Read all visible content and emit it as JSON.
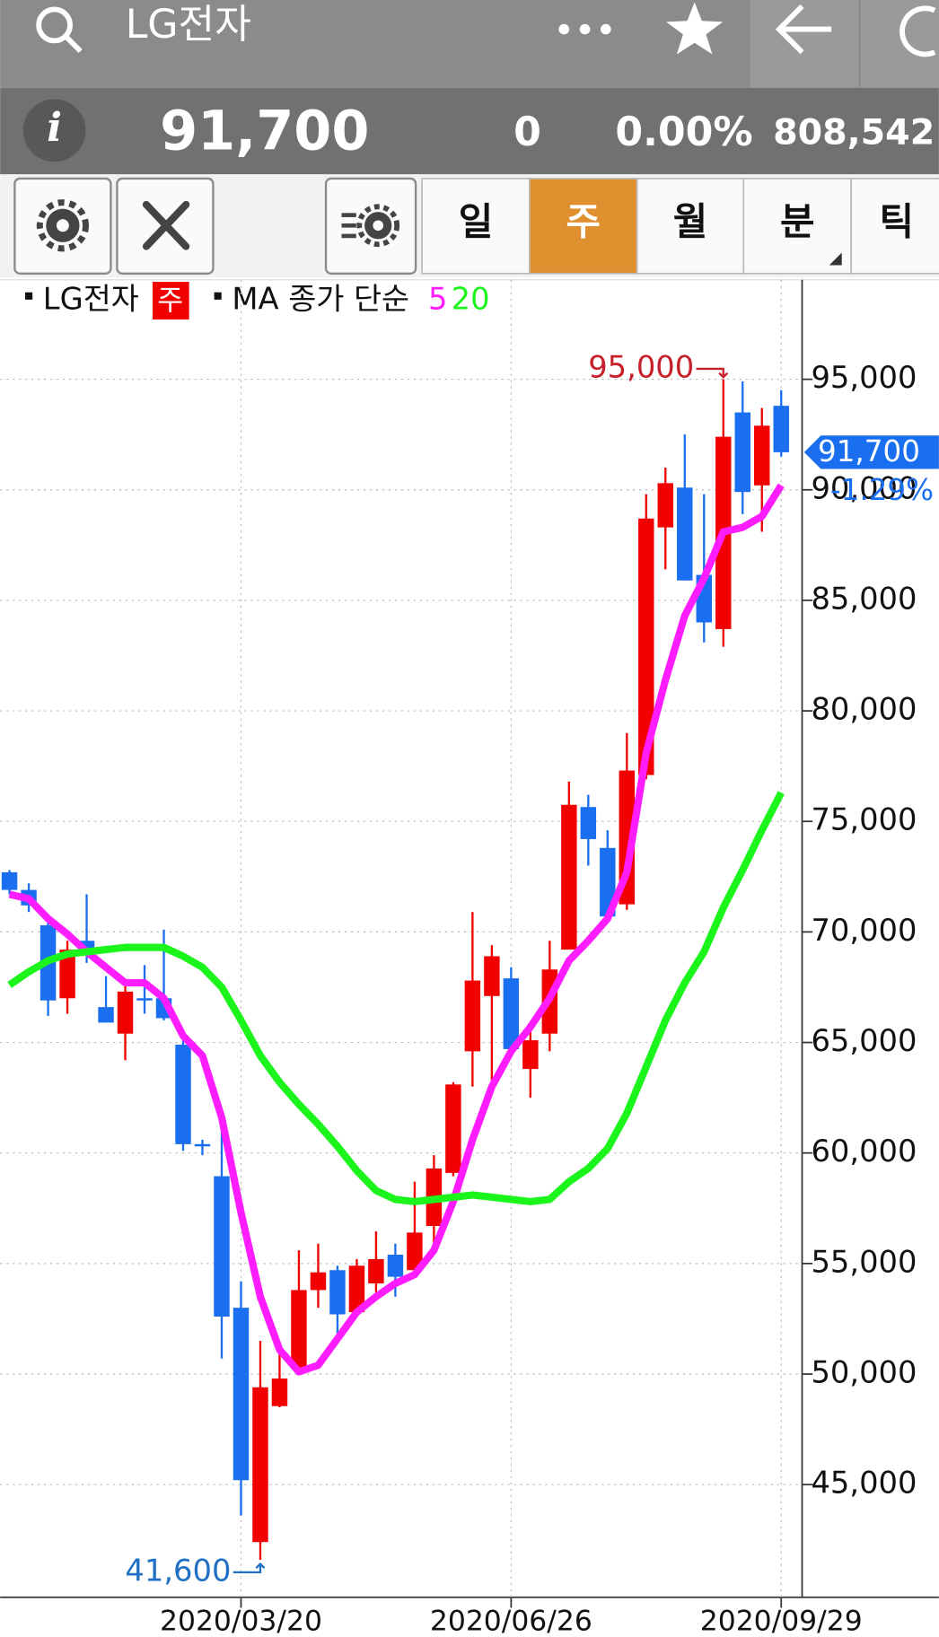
{
  "header": {
    "title": "LG전자",
    "price": "91,700",
    "change": "0",
    "change_pct": "0.00%",
    "volume": "808,542"
  },
  "tabs": [
    "일",
    "주",
    "월",
    "분",
    "틱"
  ],
  "chart_data": {
    "type": "candlestick",
    "legend": {
      "name": "LG전자",
      "period": "주",
      "ma_label": "MA 종가 단순"
    },
    "candles": {
      "up_color": "#f20000",
      "down_color": "#1a6ef0",
      "open": [
        72700,
        71900,
        70300,
        67000,
        69600,
        66600,
        65400,
        67000,
        67000,
        64900,
        60400,
        58950,
        53000,
        42400,
        48550,
        50300,
        53800,
        54700,
        52800,
        54100,
        55400,
        54700,
        56700,
        59100,
        64600,
        67100,
        67900,
        63800,
        65400,
        69200,
        75650,
        73800,
        71250,
        77100,
        88300,
        90100,
        86150,
        83700,
        93500,
        90200,
        93800
      ],
      "high": [
        72800,
        72200,
        70500,
        69600,
        71700,
        68000,
        67700,
        68500,
        70100,
        65100,
        60600,
        61300,
        54200,
        51500,
        51200,
        55600,
        55900,
        54900,
        55200,
        56450,
        55900,
        58700,
        59900,
        63200,
        70900,
        69400,
        68400,
        65600,
        69600,
        76800,
        76200,
        74600,
        79000,
        89800,
        91000,
        92500,
        89800,
        95000,
        94900,
        93700,
        94500
      ],
      "low": [
        71700,
        70900,
        66200,
        66300,
        68600,
        65900,
        64200,
        66300,
        66000,
        60100,
        59900,
        50700,
        43600,
        41600,
        48500,
        50300,
        53000,
        51400,
        52700,
        53500,
        53500,
        54700,
        55600,
        58950,
        63000,
        63000,
        64700,
        62500,
        64600,
        69200,
        73000,
        70600,
        71000,
        76900,
        86400,
        85900,
        83100,
        82900,
        88900,
        88100,
        91500
      ],
      "close": [
        71900,
        71200,
        66900,
        69200,
        69000,
        65900,
        67300,
        66900,
        66100,
        60400,
        60300,
        52600,
        45200,
        49400,
        49800,
        53800,
        54600,
        52700,
        54900,
        55200,
        54400,
        56400,
        59300,
        63100,
        67800,
        68900,
        64700,
        65100,
        68300,
        75750,
        74200,
        70700,
        77300,
        88700,
        90300,
        85900,
        84000,
        92400,
        89900,
        92900,
        91700
      ]
    },
    "series": [
      {
        "name": "5",
        "color": "#ff1cff",
        "values": [
          71700,
          71500,
          70600,
          69900,
          69100,
          68400,
          67700,
          67700,
          67000,
          65300,
          64400,
          61600,
          57300,
          53500,
          51100,
          50100,
          50400,
          51600,
          52800,
          53500,
          54100,
          54500,
          55600,
          57800,
          60600,
          63000,
          64600,
          65700,
          67000,
          68700,
          69600,
          70600,
          72700,
          78100,
          81400,
          84300,
          86000,
          88100,
          88300,
          88800,
          90200
        ]
      },
      {
        "name": "20",
        "color": "#1cf51c",
        "values": [
          67600,
          68200,
          68700,
          69000,
          69100,
          69200,
          69300,
          69300,
          69300,
          68900,
          68400,
          67500,
          66000,
          64400,
          63200,
          62200,
          61300,
          60300,
          59200,
          58300,
          57900,
          57800,
          57900,
          58000,
          58100,
          58000,
          57900,
          57800,
          57900,
          58700,
          59300,
          60200,
          61800,
          63900,
          66000,
          67700,
          69100,
          71100,
          72800,
          74600,
          76300
        ]
      }
    ],
    "categories": [
      null,
      null,
      null,
      null,
      null,
      null,
      null,
      null,
      null,
      null,
      null,
      null,
      "2020/03/20",
      null,
      null,
      null,
      null,
      null,
      null,
      null,
      null,
      null,
      null,
      null,
      null,
      null,
      "2020/06/26",
      null,
      null,
      null,
      null,
      null,
      null,
      null,
      null,
      null,
      null,
      null,
      null,
      null,
      "2020/09/29"
    ],
    "ylim": [
      39900,
      99500
    ],
    "yticks": [
      {
        "value": 45000,
        "label": "45,000"
      },
      {
        "value": 50000,
        "label": "50,000"
      },
      {
        "value": 55000,
        "label": "55,000"
      },
      {
        "value": 60000,
        "label": "60,000"
      },
      {
        "value": 65000,
        "label": "65,000"
      },
      {
        "value": 70000,
        "label": "70,000"
      },
      {
        "value": 75000,
        "label": "75,000"
      },
      {
        "value": 80000,
        "label": "80,000"
      },
      {
        "value": 85000,
        "label": "85,000"
      },
      {
        "value": 90000,
        "label": "90,000"
      },
      {
        "value": 95000,
        "label": "95,000"
      }
    ],
    "grid": true,
    "annotations": [
      {
        "text": "95,000",
        "value": 95000,
        "color": "#c8202a"
      },
      {
        "text": "41,600",
        "value": 41600,
        "color": "#1f6fc4"
      }
    ],
    "last_price": {
      "text": "91,700",
      "value": 91700,
      "color": "#1a6ef0"
    },
    "last_change": "-1.29%"
  }
}
